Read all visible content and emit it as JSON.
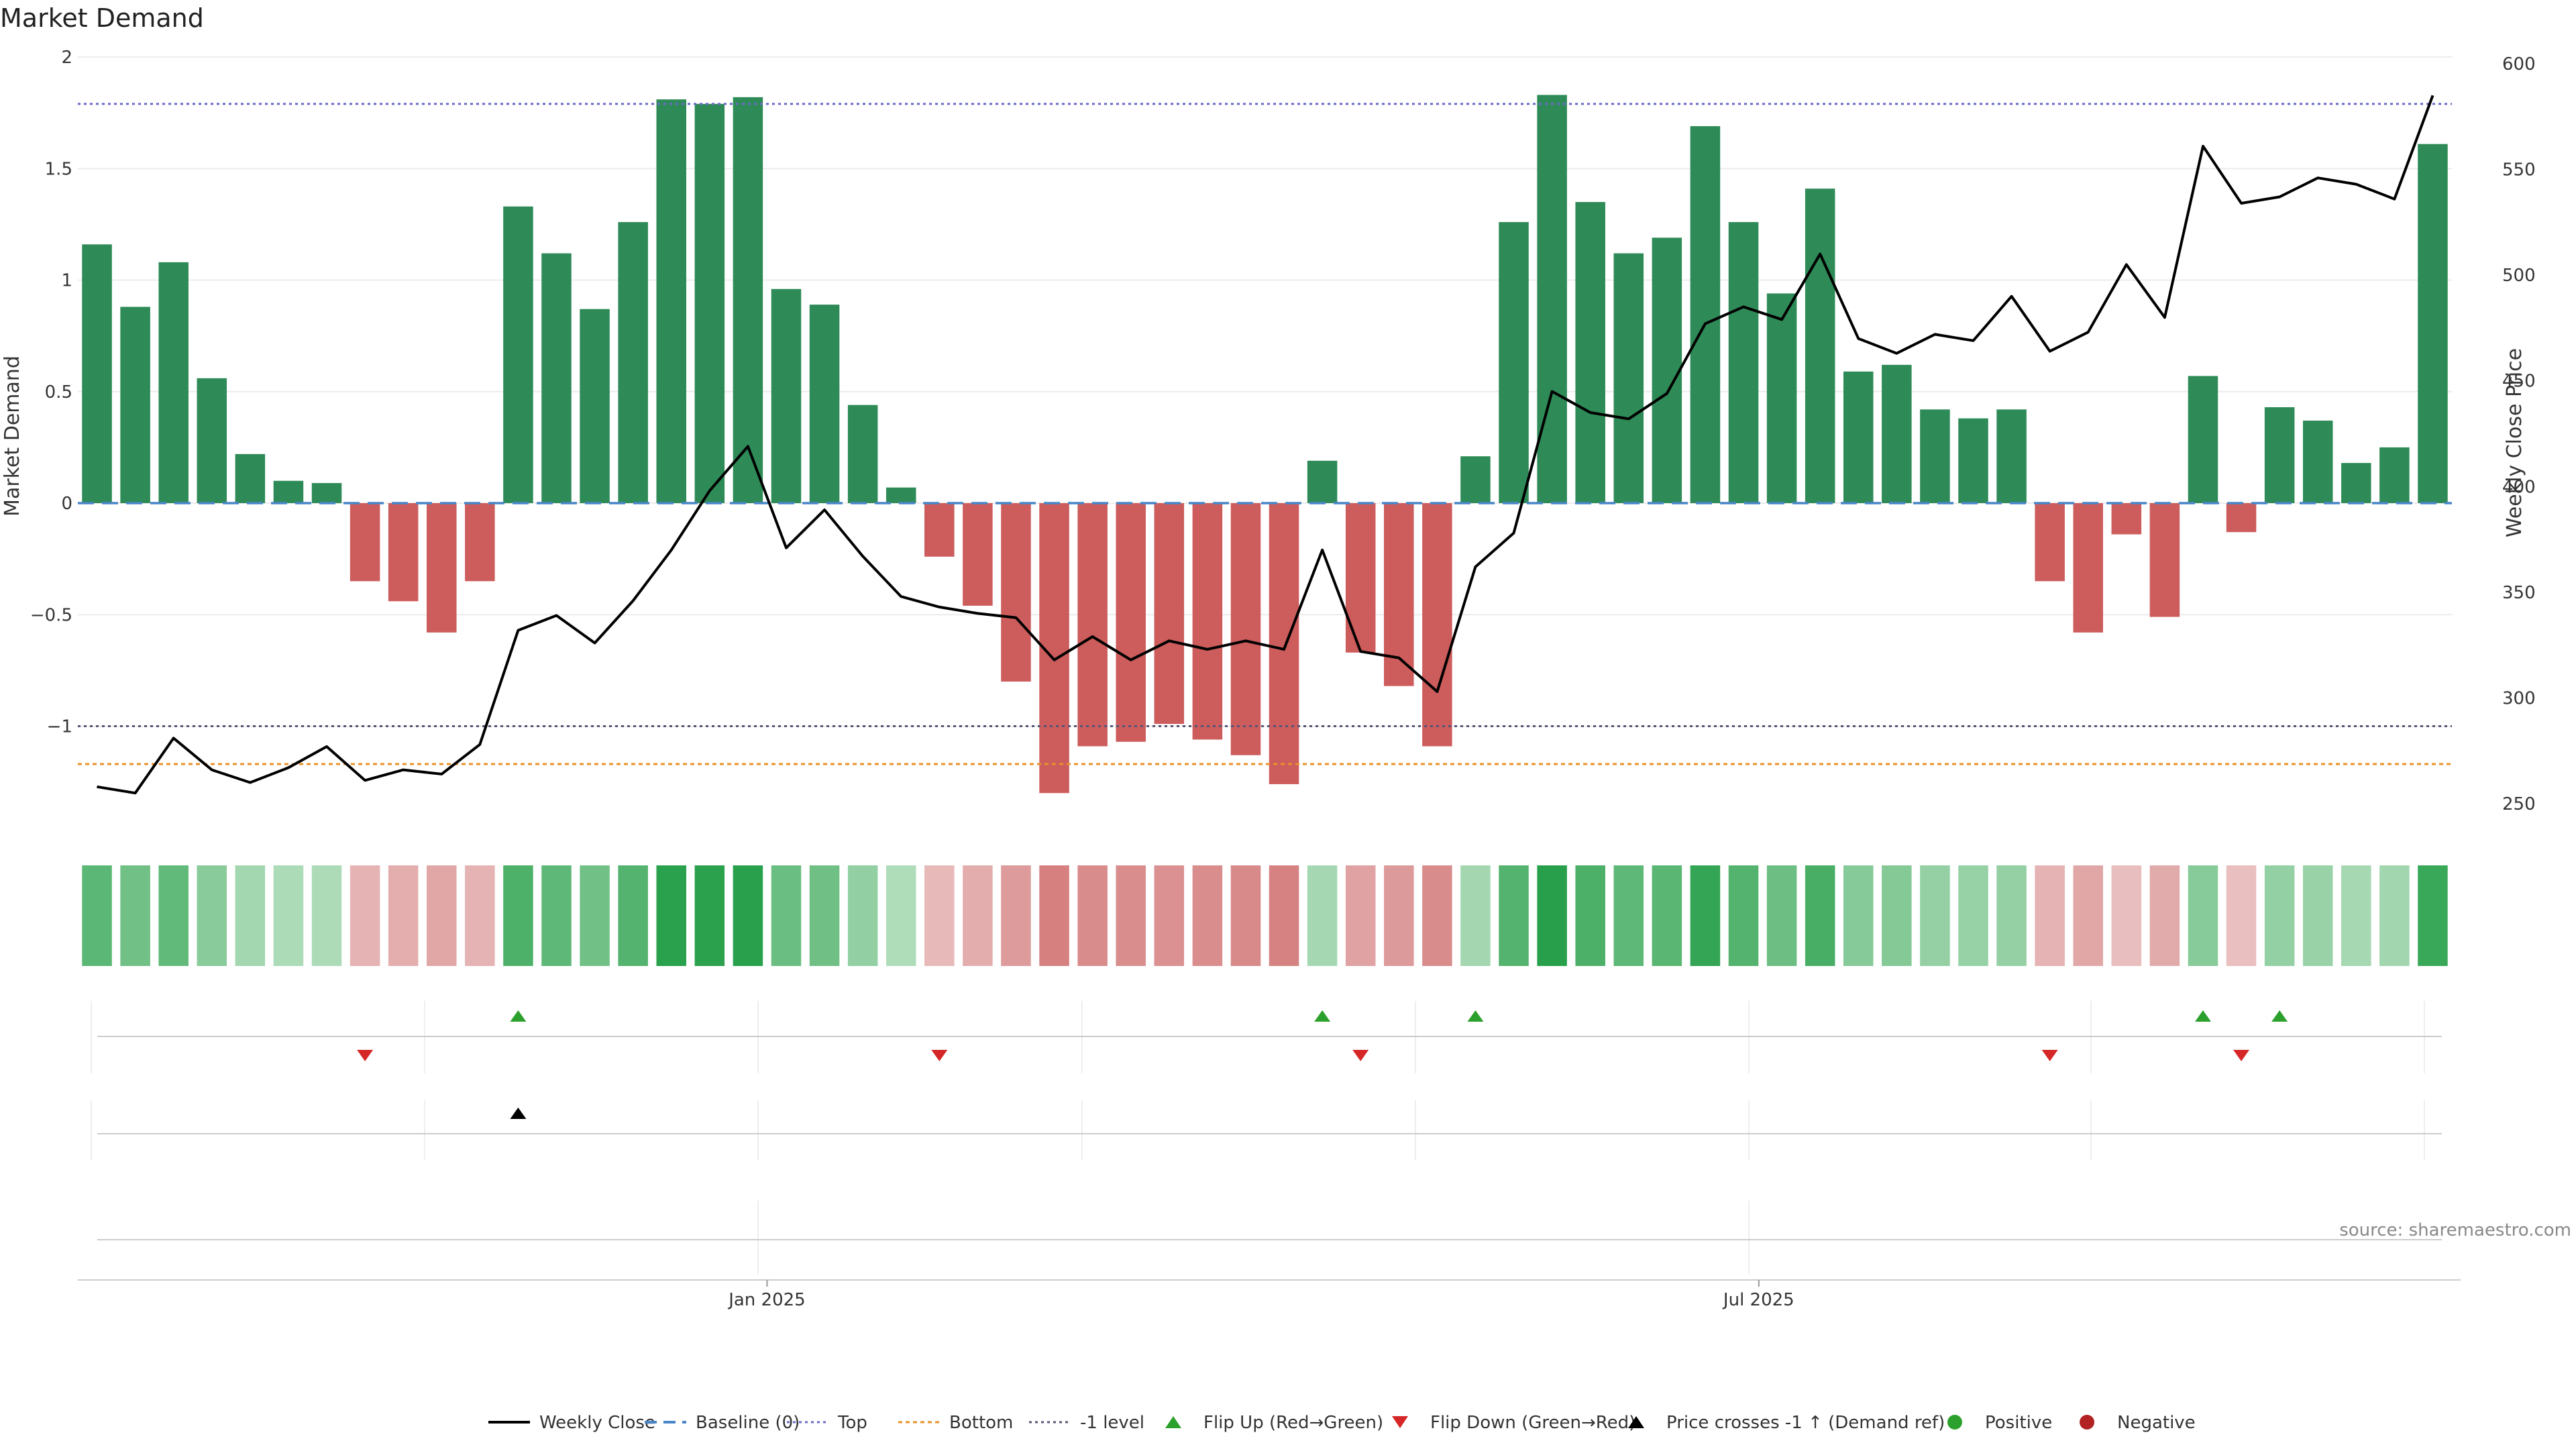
{
  "chart_data": {
    "type": "bar",
    "title": "Market Demand",
    "ylabel": "Market Demand",
    "y2label": "Weekly Close Price",
    "ylim": [
      -1.45,
      2.0
    ],
    "y2lim": [
      238,
      606
    ],
    "yticks": [
      -1,
      -0.5,
      0,
      0.5,
      1,
      1.5,
      2
    ],
    "ytick_labels": [
      "−1",
      "−0.5",
      "0",
      "0.5",
      "1",
      "1.5",
      "2"
    ],
    "y2ticks": [
      250,
      300,
      350,
      400,
      450,
      500,
      550,
      600
    ],
    "y2tick_labels": [
      "250",
      "300",
      "350",
      "400",
      "450",
      "500",
      "550",
      "600"
    ],
    "x_tick_labels": [
      {
        "label": "Jan 2025",
        "index": 17.5
      },
      {
        "label": "Jul 2025",
        "index": 43.4
      }
    ],
    "grid": true,
    "reference_lines": {
      "top": 1.79,
      "bottom": -1.17,
      "minus_one": -1.0,
      "baseline": 0
    },
    "demand": [
      1.16,
      0.88,
      1.08,
      0.56,
      0.22,
      0.1,
      0.09,
      -0.35,
      -0.44,
      -0.58,
      -0.35,
      1.33,
      1.12,
      0.87,
      1.26,
      1.81,
      1.79,
      1.82,
      0.96,
      0.89,
      0.44,
      0.07,
      -0.24,
      -0.46,
      -0.8,
      -1.3,
      -1.09,
      -1.07,
      -0.99,
      -1.06,
      -1.13,
      -1.26,
      0.19,
      -0.67,
      -0.82,
      -1.09,
      0.21,
      1.26,
      1.83,
      1.35,
      1.12,
      1.19,
      1.69,
      1.26,
      0.94,
      1.41,
      0.59,
      0.62,
      0.42,
      0.38,
      0.42,
      -0.35,
      -0.58,
      -0.14,
      -0.51,
      0.57,
      -0.13,
      0.43,
      0.37,
      0.18,
      0.25,
      1.61
    ],
    "weekly_close": [
      258,
      255,
      281,
      266,
      260,
      267,
      277,
      261,
      266,
      264,
      278,
      332,
      339,
      326,
      346,
      370,
      398,
      419,
      371,
      389,
      367,
      348,
      343,
      340,
      338,
      318,
      329,
      318,
      327,
      323,
      327,
      323,
      370,
      322,
      319,
      303,
      362,
      378,
      445,
      435,
      432,
      444,
      477,
      485,
      479,
      510,
      470,
      463,
      472,
      469,
      490,
      464,
      473,
      505,
      480,
      561,
      534,
      537,
      546,
      543,
      536,
      585
    ],
    "flip_up_indices": [
      11,
      32,
      36,
      55,
      57
    ],
    "flip_down_indices": [
      7,
      22,
      33,
      51,
      56
    ],
    "price_cross_indices": [
      11
    ],
    "legend": [
      {
        "key": "weekly_close",
        "label": "Weekly Close"
      },
      {
        "key": "baseline",
        "label": "Baseline (0)"
      },
      {
        "key": "top",
        "label": "Top"
      },
      {
        "key": "bottom",
        "label": "Bottom"
      },
      {
        "key": "minus_one",
        "label": "-1 level"
      },
      {
        "key": "flip_up",
        "label": "Flip Up (Red→Green)"
      },
      {
        "key": "flip_down",
        "label": "Flip Down (Green→Red)"
      },
      {
        "key": "price_cross",
        "label": "Price crosses -1 ↑ (Demand ref)"
      },
      {
        "key": "positive",
        "label": "Positive"
      },
      {
        "key": "negative",
        "label": "Negative"
      }
    ],
    "source": "source: sharemaestro.com"
  },
  "colors": {
    "positive_bar": "#2e8b57",
    "negative_bar": "#cd5c5c",
    "price_line": "#000000",
    "baseline": "#4a86c8",
    "top_line": "#6a6ac8",
    "bottom_line": "#e8922a",
    "minus_one_line": "#555577",
    "flip_up": "#2ca02c",
    "flip_down": "#d62728",
    "price_cross": "#000000",
    "positive_dot": "#2ca02c",
    "negative_dot": "#b22222"
  }
}
